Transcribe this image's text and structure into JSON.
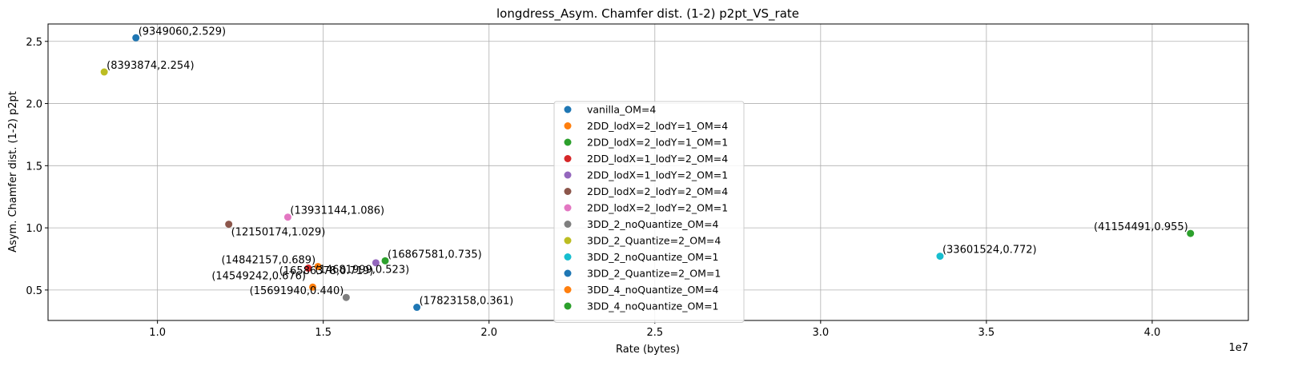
{
  "chart_data": {
    "type": "scatter",
    "title": "longdress_Asym. Chamfer dist. (1-2) p2pt_VS_rate",
    "xlabel": "Rate (bytes)",
    "ylabel": "Asym. Chamfer dist. (1-2) p2pt",
    "x_offset_label": "1e7",
    "xlim": [
      6700000,
      42900000
    ],
    "ylim": [
      0.255,
      2.64
    ],
    "x_ticks": [
      10000000,
      15000000,
      20000000,
      25000000,
      30000000,
      35000000,
      40000000
    ],
    "x_tick_labels": [
      "1.0",
      "1.5",
      "2.0",
      "2.5",
      "3.0",
      "3.5",
      "4.0"
    ],
    "y_ticks": [
      0.5,
      1.0,
      1.5,
      2.0,
      2.5
    ],
    "y_tick_labels": [
      "0.5",
      "1.0",
      "1.5",
      "2.0",
      "2.5"
    ],
    "grid": true,
    "legend_placement": "bottom-center",
    "series": [
      {
        "name": "vanilla_OM=4",
        "color": "#1f77b4",
        "x": 9349060,
        "y": 2.529,
        "label": "(9349060,2.529)",
        "label_pos": "right"
      },
      {
        "name": "2DD_lodX=2_lodY=1_OM=4",
        "color": "#ff7f0e",
        "x": 14842157,
        "y": 0.689,
        "label": "(14842157,0.689)",
        "label_pos": "left"
      },
      {
        "name": "2DD_lodX=2_lodY=1_OM=1",
        "color": "#2ca02c",
        "x": 16867581,
        "y": 0.735,
        "label": "(16867581,0.735)",
        "label_pos": "right"
      },
      {
        "name": "2DD_lodX=1_lodY=2_OM=4",
        "color": "#d62728",
        "x": 14549242,
        "y": 0.676,
        "label": "(14549242,0.676)",
        "label_pos": "below-left"
      },
      {
        "name": "2DD_lodX=1_lodY=2_OM=1",
        "color": "#9467bd",
        "x": 16586378,
        "y": 0.719,
        "label": "(16586378,0.719)",
        "label_pos": "below-left"
      },
      {
        "name": "2DD_lodX=2_lodY=2_OM=4",
        "color": "#8c564b",
        "x": 12150174,
        "y": 1.029,
        "label": "(12150174,1.029)",
        "label_pos": "below-right"
      },
      {
        "name": "2DD_lodX=2_lodY=2_OM=1",
        "color": "#e377c2",
        "x": 13931144,
        "y": 1.086,
        "label": "(13931144,1.086)",
        "label_pos": "right"
      },
      {
        "name": "3DD_2_noQuantize_OM=4",
        "color": "#7f7f7f",
        "x": 15691940,
        "y": 0.44,
        "label": "(15691940,0.440)",
        "label_pos": "left"
      },
      {
        "name": "3DD_2_Quantize=2_OM=4",
        "color": "#bcbd22",
        "x": 8393874,
        "y": 2.254,
        "label": "(8393874,2.254)",
        "label_pos": "right"
      },
      {
        "name": "3DD_2_noQuantize_OM=1",
        "color": "#17becf",
        "x": 33601524,
        "y": 0.772,
        "label": "(33601524,0.772)",
        "label_pos": "right"
      },
      {
        "name": "3DD_2_Quantize=2_OM=1",
        "color": "#1f77b4",
        "x": 17823158,
        "y": 0.361,
        "label": "(17823158,0.361)",
        "label_pos": "right"
      },
      {
        "name": "3DD_4_noQuantize_OM=4",
        "color": "#ff7f0e",
        "x": 14681999,
        "y": 0.523,
        "label": "(14681999,0.523)",
        "label_pos": "above-right"
      },
      {
        "name": "3DD_4_noQuantize_OM=1",
        "color": "#2ca02c",
        "x": 41154491,
        "y": 0.955,
        "label": "(41154491,0.955)",
        "label_pos": "left"
      }
    ]
  }
}
